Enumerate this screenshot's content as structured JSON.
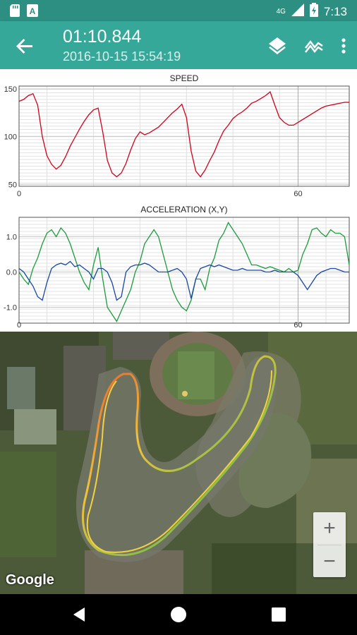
{
  "status_bar": {
    "time": "7:13",
    "network": "4G",
    "icons": [
      "sd-card-icon",
      "notification-a-icon",
      "signal-icon",
      "battery-charging-icon"
    ]
  },
  "app_bar": {
    "title": "01:10.844",
    "subtitle": "2016-10-15 15:54:19",
    "actions": [
      "layers-icon",
      "chart-line-icon",
      "more-vert-icon"
    ]
  },
  "colors": {
    "status_bar": "#2d8f82",
    "app_bar": "#36a89a",
    "speed_line": "#d0021b",
    "accel_x": "#1a9c3a",
    "accel_y": "#1646a6"
  },
  "chart_data": [
    {
      "type": "line",
      "title": "SPEED",
      "xlabel": "",
      "ylabel": "",
      "x_ticks": [
        "0",
        "60"
      ],
      "y_ticks": [
        "50",
        "100",
        "150"
      ],
      "xlim": [
        0,
        71
      ],
      "ylim": [
        48,
        153
      ],
      "grid": true,
      "series": [
        {
          "color": "#d0021b",
          "x": [
            0,
            1,
            2,
            3,
            4,
            5,
            6,
            7,
            8,
            9,
            10,
            11,
            12,
            13,
            14,
            15,
            16,
            17,
            18,
            19,
            20,
            21,
            22,
            23,
            24,
            25,
            26,
            27,
            28,
            29,
            30,
            31,
            32,
            33,
            34,
            35,
            36,
            37,
            38,
            39,
            40,
            41,
            42,
            43,
            44,
            45,
            46,
            47,
            48,
            49,
            50,
            51,
            52,
            53,
            54,
            55,
            56,
            57,
            58,
            59,
            60,
            61,
            62,
            63,
            64,
            65,
            66,
            67,
            68,
            69,
            70,
            71
          ],
          "values": [
            137,
            139,
            143,
            145,
            133,
            100,
            80,
            71,
            66,
            70,
            79,
            90,
            99,
            108,
            116,
            123,
            128,
            130,
            105,
            75,
            62,
            58,
            62,
            72,
            86,
            98,
            105,
            102,
            104,
            107,
            110,
            115,
            120,
            125,
            129,
            134,
            120,
            85,
            64,
            58,
            65,
            75,
            84,
            96,
            106,
            112,
            119,
            123,
            126,
            130,
            135,
            137,
            140,
            143,
            147,
            133,
            120,
            115,
            112,
            112,
            115,
            118,
            121,
            124,
            127,
            130,
            132,
            133,
            134,
            135,
            136,
            136
          ]
        }
      ]
    },
    {
      "type": "line",
      "title": "ACCELERATION (X,Y)",
      "xlabel": "",
      "ylabel": "",
      "x_ticks": [
        "0",
        "60"
      ],
      "y_ticks": [
        "1.0",
        "0.0",
        "-1.0"
      ],
      "xlim": [
        0,
        71
      ],
      "ylim": [
        -1.45,
        1.55
      ],
      "grid": true,
      "series": [
        {
          "color": "#1a9c3a",
          "x": [
            0,
            1,
            2,
            3,
            4,
            5,
            6,
            7,
            8,
            9,
            10,
            11,
            12,
            13,
            14,
            15,
            16,
            17,
            18,
            19,
            20,
            21,
            22,
            23,
            24,
            25,
            26,
            27,
            28,
            29,
            30,
            31,
            32,
            33,
            34,
            35,
            36,
            37,
            38,
            39,
            40,
            41,
            42,
            43,
            44,
            45,
            46,
            47,
            48,
            49,
            50,
            51,
            52,
            53,
            54,
            55,
            56,
            57,
            58,
            59,
            60,
            61,
            62,
            63,
            64,
            65,
            66,
            67,
            68,
            69,
            70,
            71
          ],
          "values": [
            0.0,
            -0.2,
            -0.35,
            0.1,
            0.4,
            0.8,
            1.1,
            1.2,
            1.0,
            1.25,
            1.1,
            0.8,
            0.4,
            0.0,
            -0.3,
            -0.5,
            0.2,
            0.7,
            -0.2,
            -1.0,
            -1.2,
            -1.4,
            -1.1,
            -0.8,
            -0.5,
            0.0,
            0.3,
            0.8,
            1.0,
            1.2,
            1.0,
            0.5,
            0.0,
            -0.5,
            -0.8,
            -1.0,
            -1.1,
            -0.8,
            -0.2,
            -0.2,
            -0.5,
            0.1,
            0.4,
            0.9,
            1.1,
            1.4,
            1.2,
            1.0,
            0.8,
            0.5,
            0.2,
            0.2,
            0.15,
            0.1,
            0.15,
            0.1,
            0.05,
            0.0,
            0.1,
            0.0,
            0.05,
            0.5,
            0.8,
            1.2,
            1.25,
            1.1,
            1.0,
            1.2,
            1.1,
            1.1,
            1.0,
            0.2
          ]
        },
        {
          "color": "#1646a6",
          "x": [
            0,
            1,
            2,
            3,
            4,
            5,
            6,
            7,
            8,
            9,
            10,
            11,
            12,
            13,
            14,
            15,
            16,
            17,
            18,
            19,
            20,
            21,
            22,
            23,
            24,
            25,
            26,
            27,
            28,
            29,
            30,
            31,
            32,
            33,
            34,
            35,
            36,
            37,
            38,
            39,
            40,
            41,
            42,
            43,
            44,
            45,
            46,
            47,
            48,
            49,
            50,
            51,
            52,
            53,
            54,
            55,
            56,
            57,
            58,
            59,
            60,
            61,
            62,
            63,
            64,
            65,
            66,
            67,
            68,
            69,
            70,
            71
          ],
          "values": [
            0.1,
            0.0,
            -0.2,
            -0.4,
            -0.7,
            -0.8,
            -0.3,
            0.1,
            0.2,
            0.25,
            0.2,
            0.3,
            0.15,
            0.2,
            0.1,
            0.0,
            -0.2,
            0.1,
            0.1,
            0.0,
            -0.3,
            -0.8,
            -0.7,
            0.0,
            0.15,
            0.2,
            0.2,
            0.25,
            0.2,
            0.1,
            0.0,
            0.0,
            0.0,
            0.05,
            0.1,
            0.0,
            -0.2,
            -0.75,
            -0.2,
            0.1,
            0.15,
            0.2,
            0.15,
            0.2,
            0.15,
            0.1,
            0.05,
            0.05,
            0.1,
            0.05,
            0.05,
            0.05,
            0.05,
            0.0,
            0.0,
            0.05,
            0.0,
            0.0,
            0.0,
            0.0,
            -0.1,
            -0.3,
            -0.5,
            -0.3,
            -0.1,
            0.0,
            0.05,
            0.1,
            0.1,
            0.05,
            0.0,
            0.0
          ]
        }
      ]
    }
  ],
  "map": {
    "attribution": "Google",
    "zoom_in": "+",
    "zoom_out": "−"
  },
  "nav_bar": {
    "buttons": [
      "back-triangle-icon",
      "home-circle-icon",
      "recents-square-icon"
    ]
  }
}
